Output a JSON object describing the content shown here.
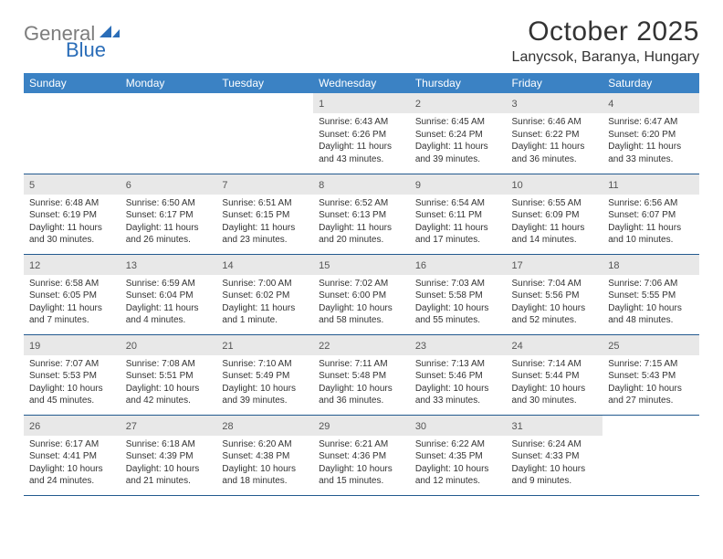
{
  "logo": {
    "gray": "General",
    "blue": "Blue"
  },
  "title": "October 2025",
  "location": "Lanycsok, Baranya, Hungary",
  "colors": {
    "header_bg": "#3b82c4",
    "header_text": "#ffffff",
    "daynum_bg": "#e8e8e8",
    "row_border": "#235a8f",
    "logo_gray": "#7d7d7d",
    "logo_blue": "#2a6db8"
  },
  "columns": [
    "Sunday",
    "Monday",
    "Tuesday",
    "Wednesday",
    "Thursday",
    "Friday",
    "Saturday"
  ],
  "weeks": [
    [
      {
        "blank": true
      },
      {
        "blank": true
      },
      {
        "blank": true
      },
      {
        "n": "1",
        "sr": "6:43 AM",
        "ss": "6:26 PM",
        "dl": "11 hours and 43 minutes."
      },
      {
        "n": "2",
        "sr": "6:45 AM",
        "ss": "6:24 PM",
        "dl": "11 hours and 39 minutes."
      },
      {
        "n": "3",
        "sr": "6:46 AM",
        "ss": "6:22 PM",
        "dl": "11 hours and 36 minutes."
      },
      {
        "n": "4",
        "sr": "6:47 AM",
        "ss": "6:20 PM",
        "dl": "11 hours and 33 minutes."
      }
    ],
    [
      {
        "n": "5",
        "sr": "6:48 AM",
        "ss": "6:19 PM",
        "dl": "11 hours and 30 minutes."
      },
      {
        "n": "6",
        "sr": "6:50 AM",
        "ss": "6:17 PM",
        "dl": "11 hours and 26 minutes."
      },
      {
        "n": "7",
        "sr": "6:51 AM",
        "ss": "6:15 PM",
        "dl": "11 hours and 23 minutes."
      },
      {
        "n": "8",
        "sr": "6:52 AM",
        "ss": "6:13 PM",
        "dl": "11 hours and 20 minutes."
      },
      {
        "n": "9",
        "sr": "6:54 AM",
        "ss": "6:11 PM",
        "dl": "11 hours and 17 minutes."
      },
      {
        "n": "10",
        "sr": "6:55 AM",
        "ss": "6:09 PM",
        "dl": "11 hours and 14 minutes."
      },
      {
        "n": "11",
        "sr": "6:56 AM",
        "ss": "6:07 PM",
        "dl": "11 hours and 10 minutes."
      }
    ],
    [
      {
        "n": "12",
        "sr": "6:58 AM",
        "ss": "6:05 PM",
        "dl": "11 hours and 7 minutes."
      },
      {
        "n": "13",
        "sr": "6:59 AM",
        "ss": "6:04 PM",
        "dl": "11 hours and 4 minutes."
      },
      {
        "n": "14",
        "sr": "7:00 AM",
        "ss": "6:02 PM",
        "dl": "11 hours and 1 minute."
      },
      {
        "n": "15",
        "sr": "7:02 AM",
        "ss": "6:00 PM",
        "dl": "10 hours and 58 minutes."
      },
      {
        "n": "16",
        "sr": "7:03 AM",
        "ss": "5:58 PM",
        "dl": "10 hours and 55 minutes."
      },
      {
        "n": "17",
        "sr": "7:04 AM",
        "ss": "5:56 PM",
        "dl": "10 hours and 52 minutes."
      },
      {
        "n": "18",
        "sr": "7:06 AM",
        "ss": "5:55 PM",
        "dl": "10 hours and 48 minutes."
      }
    ],
    [
      {
        "n": "19",
        "sr": "7:07 AM",
        "ss": "5:53 PM",
        "dl": "10 hours and 45 minutes."
      },
      {
        "n": "20",
        "sr": "7:08 AM",
        "ss": "5:51 PM",
        "dl": "10 hours and 42 minutes."
      },
      {
        "n": "21",
        "sr": "7:10 AM",
        "ss": "5:49 PM",
        "dl": "10 hours and 39 minutes."
      },
      {
        "n": "22",
        "sr": "7:11 AM",
        "ss": "5:48 PM",
        "dl": "10 hours and 36 minutes."
      },
      {
        "n": "23",
        "sr": "7:13 AM",
        "ss": "5:46 PM",
        "dl": "10 hours and 33 minutes."
      },
      {
        "n": "24",
        "sr": "7:14 AM",
        "ss": "5:44 PM",
        "dl": "10 hours and 30 minutes."
      },
      {
        "n": "25",
        "sr": "7:15 AM",
        "ss": "5:43 PM",
        "dl": "10 hours and 27 minutes."
      }
    ],
    [
      {
        "n": "26",
        "sr": "6:17 AM",
        "ss": "4:41 PM",
        "dl": "10 hours and 24 minutes."
      },
      {
        "n": "27",
        "sr": "6:18 AM",
        "ss": "4:39 PM",
        "dl": "10 hours and 21 minutes."
      },
      {
        "n": "28",
        "sr": "6:20 AM",
        "ss": "4:38 PM",
        "dl": "10 hours and 18 minutes."
      },
      {
        "n": "29",
        "sr": "6:21 AM",
        "ss": "4:36 PM",
        "dl": "10 hours and 15 minutes."
      },
      {
        "n": "30",
        "sr": "6:22 AM",
        "ss": "4:35 PM",
        "dl": "10 hours and 12 minutes."
      },
      {
        "n": "31",
        "sr": "6:24 AM",
        "ss": "4:33 PM",
        "dl": "10 hours and 9 minutes."
      },
      {
        "blank": true
      }
    ]
  ],
  "labels": {
    "sunrise": "Sunrise:",
    "sunset": "Sunset:",
    "daylight": "Daylight:"
  }
}
